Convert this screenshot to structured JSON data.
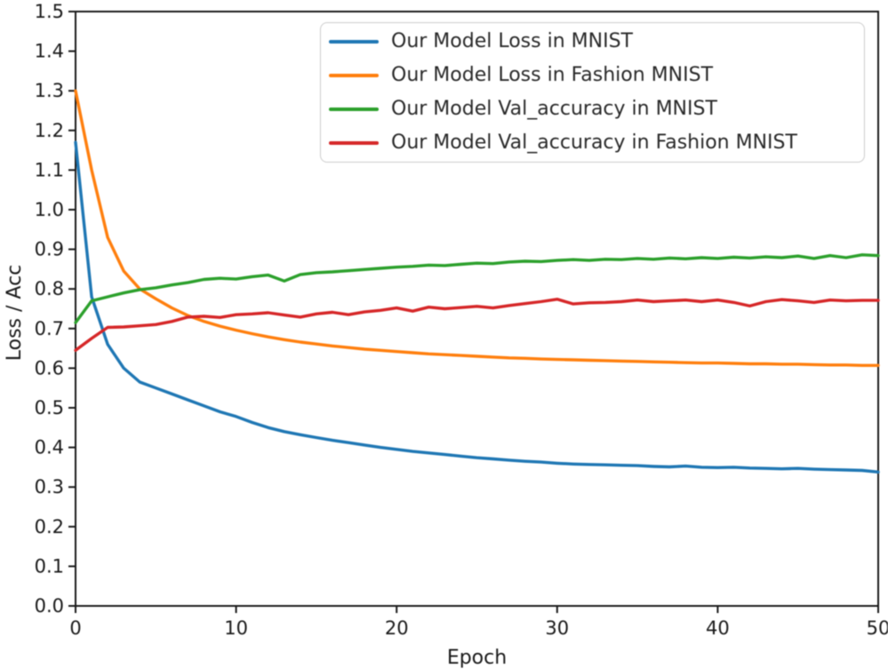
{
  "chart_data": {
    "type": "line",
    "title": "",
    "xlabel": "Epoch",
    "ylabel": "Loss / Acc",
    "xlim": [
      0,
      50
    ],
    "ylim": [
      0.0,
      1.5
    ],
    "x_tick_labels": [
      "0",
      "10",
      "20",
      "30",
      "40",
      "50"
    ],
    "x_tick_values": [
      0,
      10,
      20,
      30,
      40,
      50
    ],
    "y_tick_labels": [
      "0.0",
      "0.1",
      "0.2",
      "0.3",
      "0.4",
      "0.5",
      "0.6",
      "0.7",
      "0.8",
      "0.9",
      "1.0",
      "1.1",
      "1.2",
      "1.3",
      "1.4",
      "1.5"
    ],
    "y_tick_values": [
      0.0,
      0.1,
      0.2,
      0.3,
      0.4,
      0.5,
      0.6,
      0.7,
      0.8,
      0.9,
      1.0,
      1.1,
      1.2,
      1.3,
      1.4,
      1.5
    ],
    "grid": false,
    "legend_position": "upper right",
    "x": [
      0,
      1,
      2,
      3,
      4,
      5,
      6,
      7,
      8,
      9,
      10,
      11,
      12,
      13,
      14,
      15,
      16,
      17,
      18,
      19,
      20,
      21,
      22,
      23,
      24,
      25,
      26,
      27,
      28,
      29,
      30,
      31,
      32,
      33,
      34,
      35,
      36,
      37,
      38,
      39,
      40,
      41,
      42,
      43,
      44,
      45,
      46,
      47,
      48,
      49,
      50
    ],
    "series": [
      {
        "name": "Our Model Loss in MNIST",
        "color": "#1f77b4",
        "values": [
          1.17,
          0.78,
          0.66,
          0.6,
          0.565,
          0.55,
          0.535,
          0.52,
          0.505,
          0.49,
          0.478,
          0.463,
          0.45,
          0.44,
          0.432,
          0.425,
          0.418,
          0.412,
          0.406,
          0.4,
          0.395,
          0.39,
          0.386,
          0.382,
          0.378,
          0.374,
          0.371,
          0.368,
          0.365,
          0.363,
          0.36,
          0.358,
          0.357,
          0.356,
          0.355,
          0.354,
          0.352,
          0.351,
          0.353,
          0.35,
          0.349,
          0.35,
          0.348,
          0.347,
          0.346,
          0.347,
          0.345,
          0.344,
          0.343,
          0.342,
          0.338
        ]
      },
      {
        "name": "Our Model Loss in Fashion MNIST",
        "color": "#ff7f0e",
        "values": [
          1.3,
          1.1,
          0.93,
          0.845,
          0.8,
          0.775,
          0.752,
          0.733,
          0.718,
          0.706,
          0.696,
          0.687,
          0.679,
          0.672,
          0.666,
          0.661,
          0.656,
          0.652,
          0.648,
          0.645,
          0.642,
          0.639,
          0.636,
          0.634,
          0.632,
          0.63,
          0.628,
          0.626,
          0.625,
          0.623,
          0.622,
          0.621,
          0.62,
          0.619,
          0.618,
          0.617,
          0.616,
          0.615,
          0.614,
          0.613,
          0.613,
          0.612,
          0.611,
          0.611,
          0.61,
          0.61,
          0.609,
          0.608,
          0.608,
          0.607,
          0.607
        ]
      },
      {
        "name": "Our Model Val_accuracy in MNIST",
        "color": "#2ca02c",
        "values": [
          0.715,
          0.77,
          0.78,
          0.79,
          0.798,
          0.803,
          0.81,
          0.816,
          0.824,
          0.827,
          0.825,
          0.831,
          0.835,
          0.82,
          0.836,
          0.841,
          0.843,
          0.846,
          0.849,
          0.852,
          0.855,
          0.857,
          0.86,
          0.859,
          0.862,
          0.865,
          0.864,
          0.868,
          0.87,
          0.869,
          0.872,
          0.874,
          0.872,
          0.875,
          0.874,
          0.877,
          0.875,
          0.878,
          0.876,
          0.879,
          0.877,
          0.88,
          0.878,
          0.881,
          0.879,
          0.883,
          0.877,
          0.884,
          0.879,
          0.886,
          0.884
        ]
      },
      {
        "name": "Our Model Val_accuracy in Fashion MNIST",
        "color": "#d62728",
        "values": [
          0.645,
          0.675,
          0.703,
          0.704,
          0.707,
          0.71,
          0.718,
          0.729,
          0.731,
          0.728,
          0.735,
          0.737,
          0.74,
          0.734,
          0.729,
          0.737,
          0.741,
          0.735,
          0.742,
          0.746,
          0.752,
          0.744,
          0.754,
          0.75,
          0.753,
          0.756,
          0.752,
          0.758,
          0.763,
          0.768,
          0.774,
          0.762,
          0.765,
          0.766,
          0.768,
          0.772,
          0.768,
          0.77,
          0.772,
          0.768,
          0.772,
          0.766,
          0.757,
          0.768,
          0.773,
          0.77,
          0.766,
          0.772,
          0.77,
          0.771,
          0.771
        ]
      }
    ],
    "style": {
      "axis_color": "#1a1a1a",
      "text_color": "#1a1a1a",
      "legend_border_color": "#cccccc",
      "background_color": "#ffffff",
      "line_width": 3.4
    }
  }
}
